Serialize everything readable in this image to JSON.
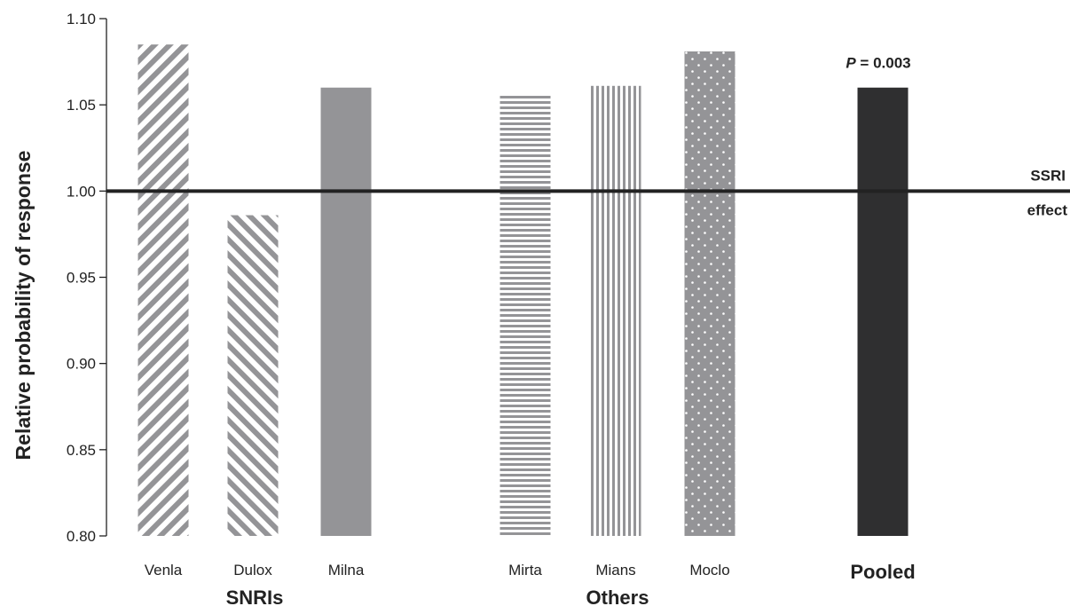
{
  "chart_data": {
    "type": "bar",
    "ylabel": "Relative probability of response",
    "ylim": [
      0.8,
      1.1
    ],
    "yticks": [
      0.8,
      0.85,
      0.9,
      0.95,
      1.0,
      1.05,
      1.1
    ],
    "ytick_labels": [
      "0.80",
      "0.85",
      "0.90",
      "0.95",
      "1.00",
      "1.05",
      "1.10"
    ],
    "categories": [
      "Venla",
      "Dulox",
      "Milna",
      "Mirta",
      "Mians",
      "Moclo",
      "Pooled"
    ],
    "values": [
      1.085,
      0.986,
      1.06,
      1.056,
      1.061,
      1.081,
      1.06
    ],
    "patterns": [
      "diag-up",
      "diag-down",
      "solid-gray",
      "horizontal",
      "vertical",
      "dots",
      "solid-black"
    ],
    "colors": {
      "gray": "#949497",
      "black": "#2f2f30",
      "light_gray": "#b5b5b8",
      "axis": "#222222"
    },
    "groups": [
      {
        "label": "SNRIs",
        "categories": [
          "Venla",
          "Dulox",
          "Milna"
        ]
      },
      {
        "label": "Others",
        "categories": [
          "Mirta",
          "Mians",
          "Moclo"
        ]
      }
    ],
    "reference_line": {
      "value": 1.0,
      "label_line1": "SSRI",
      "label_line2": "effect"
    },
    "annotation": {
      "italic": "P",
      "text": " = 0.003",
      "category": "Pooled"
    },
    "grid": false
  }
}
